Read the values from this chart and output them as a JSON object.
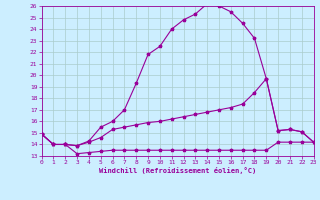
{
  "bg_color": "#cceeff",
  "line_color": "#990099",
  "grid_color": "#aacccc",
  "xlabel": "Windchill (Refroidissement éolien,°C)",
  "xlim": [
    0,
    23
  ],
  "ylim": [
    13,
    26
  ],
  "yticks": [
    13,
    14,
    15,
    16,
    17,
    18,
    19,
    20,
    21,
    22,
    23,
    24,
    25,
    26
  ],
  "xticks": [
    0,
    1,
    2,
    3,
    4,
    5,
    6,
    7,
    8,
    9,
    10,
    11,
    12,
    13,
    14,
    15,
    16,
    17,
    18,
    19,
    20,
    21,
    22,
    23
  ],
  "line1_x": [
    0,
    1,
    2,
    3,
    4,
    5,
    6,
    7,
    8,
    9,
    10,
    11,
    12,
    13,
    14,
    15,
    16,
    17,
    18,
    19,
    20,
    21,
    22,
    23
  ],
  "line1_y": [
    14.9,
    14.0,
    14.0,
    13.2,
    13.3,
    13.4,
    13.5,
    13.5,
    13.5,
    13.5,
    13.5,
    13.5,
    13.5,
    13.5,
    13.5,
    13.5,
    13.5,
    13.5,
    13.5,
    13.5,
    14.2,
    14.2,
    14.2,
    14.2
  ],
  "line2_x": [
    0,
    1,
    2,
    3,
    4,
    5,
    6,
    7,
    8,
    9,
    10,
    11,
    12,
    13,
    14,
    15,
    16,
    17,
    18,
    19,
    20,
    21,
    22,
    23
  ],
  "line2_y": [
    14.9,
    14.0,
    14.0,
    13.9,
    14.2,
    14.6,
    15.3,
    15.5,
    15.7,
    15.9,
    16.0,
    16.2,
    16.4,
    16.6,
    16.8,
    17.0,
    17.2,
    17.5,
    18.5,
    19.7,
    15.2,
    15.3,
    15.1,
    14.2
  ],
  "line3_x": [
    0,
    1,
    2,
    3,
    4,
    5,
    6,
    7,
    8,
    9,
    10,
    11,
    12,
    13,
    14,
    15,
    16,
    17,
    18,
    19,
    20,
    21,
    22,
    23
  ],
  "line3_y": [
    14.9,
    14.0,
    14.0,
    13.9,
    14.3,
    15.5,
    16.0,
    17.0,
    19.3,
    21.8,
    22.5,
    24.0,
    24.8,
    25.3,
    26.2,
    26.0,
    25.5,
    24.5,
    23.2,
    19.7,
    15.2,
    15.3,
    15.1,
    14.2
  ],
  "marker": "*",
  "markersize": 2.5,
  "linewidth": 0.8
}
